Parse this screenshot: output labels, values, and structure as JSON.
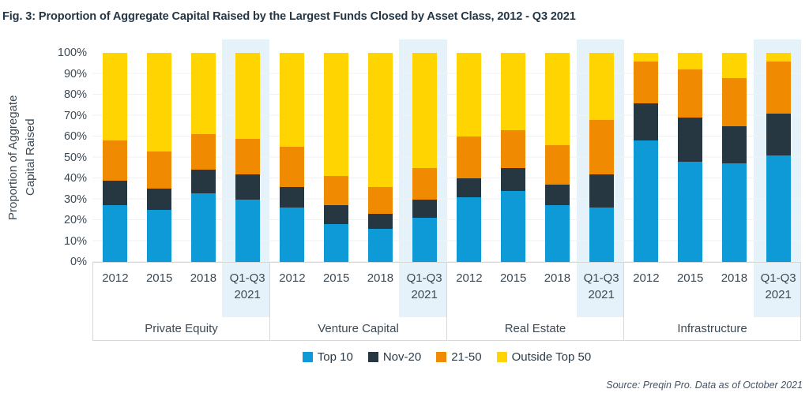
{
  "figure": {
    "title": "Fig. 3: Proportion of Aggregate Capital Raised by the Largest Funds Closed by Asset Class, 2012 - Q3 2021",
    "source_note": "Source: Preqin Pro. Data as of October 2021"
  },
  "chart_data": {
    "type": "bar",
    "stacked": true,
    "orientation": "vertical",
    "title": "Fig. 3: Proportion of Aggregate Capital Raised by the Largest Funds Closed by Asset Class, 2012 - Q3 2021",
    "ylabel": "Proportion of Aggregate Capital Raised",
    "ylabel_line1": "Proportion of Aggregate",
    "ylabel_line2": "Capital Raised",
    "xlabel": "",
    "ylim": [
      0,
      100
    ],
    "y_tick_interval": 10,
    "y_ticks": [
      "0%",
      "10%",
      "20%",
      "30%",
      "40%",
      "50%",
      "60%",
      "70%",
      "80%",
      "90%",
      "100%"
    ],
    "grid": "horizontal gridlines every 10%, light gray",
    "legend_position": "bottom center",
    "highlighted_category": "Q1-Q3 2021",
    "highlight_color": "#e6f2fa",
    "series": [
      {
        "name": "Top 10",
        "color": "#0e9ad6"
      },
      {
        "name": "Nov-20",
        "color": "#263741"
      },
      {
        "name": "21-50",
        "color": "#f08a00"
      },
      {
        "name": "Outside Top 50",
        "color": "#ffd400"
      }
    ],
    "groups": [
      {
        "label": "Private Equity",
        "bars": [
          {
            "category": "2012",
            "highlight": false,
            "values": [
              27,
              12,
              19,
              42
            ]
          },
          {
            "category": "2015",
            "highlight": false,
            "values": [
              25,
              10,
              18,
              47
            ]
          },
          {
            "category": "2018",
            "highlight": false,
            "values": [
              33,
              11,
              17,
              39
            ]
          },
          {
            "category": "Q1-Q3 2021",
            "highlight": true,
            "values": [
              30,
              12,
              17,
              41
            ]
          }
        ]
      },
      {
        "label": "Venture Capital",
        "bars": [
          {
            "category": "2012",
            "highlight": false,
            "values": [
              26,
              10,
              19,
              45
            ]
          },
          {
            "category": "2015",
            "highlight": false,
            "values": [
              18,
              9,
              14,
              59
            ]
          },
          {
            "category": "2018",
            "highlight": false,
            "values": [
              16,
              7,
              13,
              64
            ]
          },
          {
            "category": "Q1-Q3 2021",
            "highlight": true,
            "values": [
              21,
              9,
              15,
              55
            ]
          }
        ]
      },
      {
        "label": "Real Estate",
        "bars": [
          {
            "category": "2012",
            "highlight": false,
            "values": [
              31,
              9,
              20,
              40
            ]
          },
          {
            "category": "2015",
            "highlight": false,
            "values": [
              34,
              11,
              18,
              37
            ]
          },
          {
            "category": "2018",
            "highlight": false,
            "values": [
              27,
              10,
              19,
              44
            ]
          },
          {
            "category": "Q1-Q3 2021",
            "highlight": true,
            "values": [
              26,
              16,
              26,
              32
            ]
          }
        ]
      },
      {
        "label": "Infrastructure",
        "bars": [
          {
            "category": "2012",
            "highlight": false,
            "values": [
              58,
              18,
              20,
              4
            ]
          },
          {
            "category": "2015",
            "highlight": false,
            "values": [
              48,
              21,
              23,
              8
            ]
          },
          {
            "category": "2018",
            "highlight": false,
            "values": [
              47,
              18,
              23,
              12
            ]
          },
          {
            "category": "Q1-Q3 2021",
            "highlight": true,
            "values": [
              51,
              20,
              25,
              4
            ]
          }
        ]
      }
    ]
  }
}
